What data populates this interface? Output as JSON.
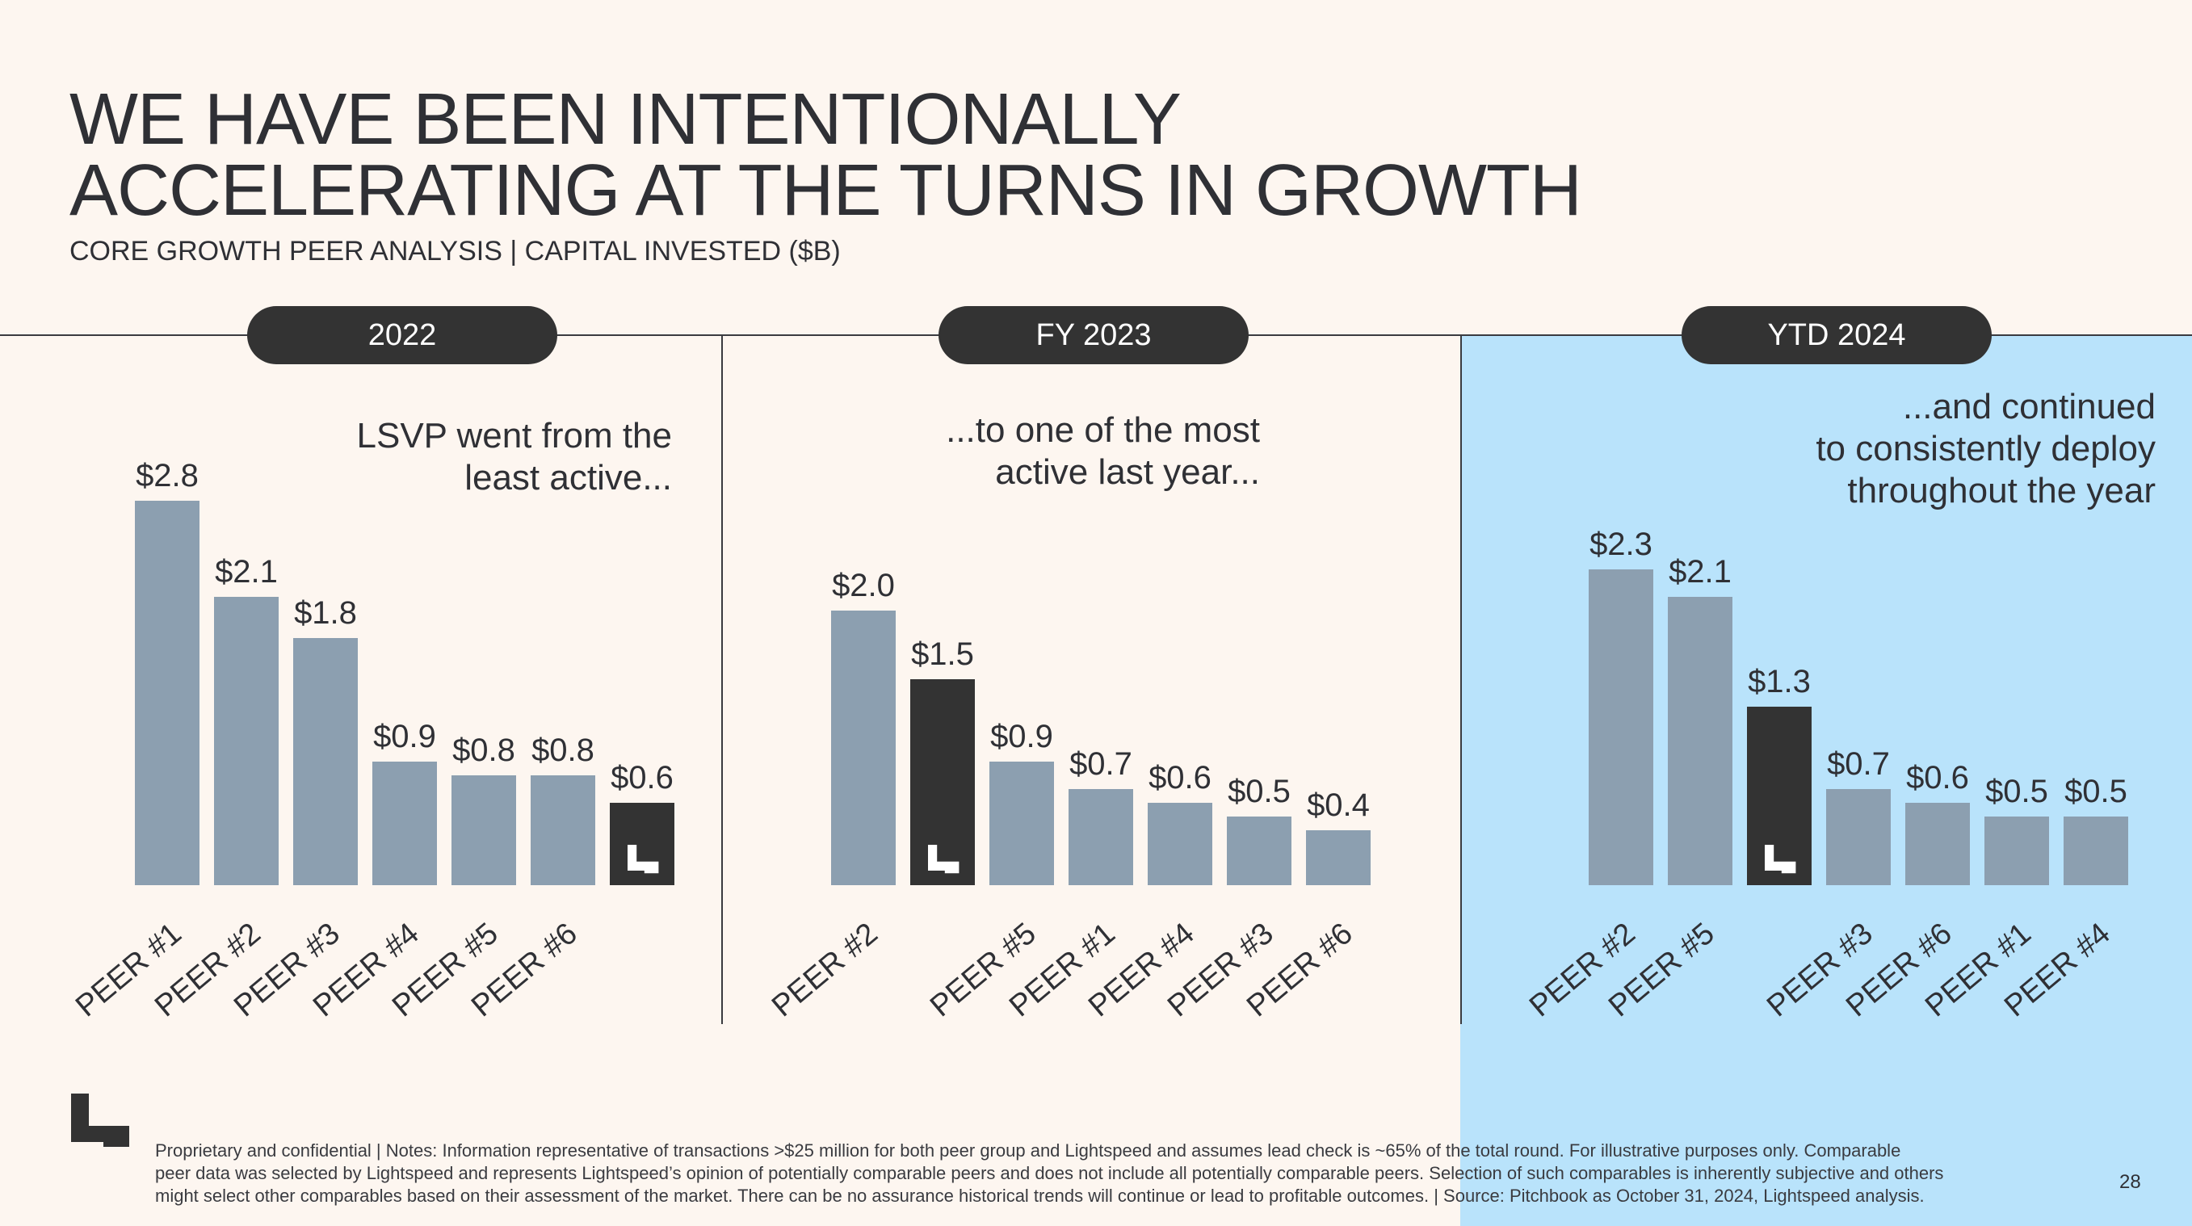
{
  "header": {
    "title_line1": "WE HAVE BEEN INTENTIONALLY",
    "title_line2": "ACCELERATING AT THE TURNS IN GROWTH",
    "subtitle": "CORE GROWTH PEER ANALYSIS | CAPITAL INVESTED ($B)"
  },
  "panels": [
    {
      "label": "2022",
      "annotation": [
        "LSVP went from the",
        "least active..."
      ]
    },
    {
      "label": "FY 2023",
      "annotation": [
        "...to one of the most",
        "active last year..."
      ]
    },
    {
      "label": "YTD 2024",
      "annotation": [
        "...and continued",
        "to consistently deploy",
        "throughout the year"
      ]
    }
  ],
  "colors": {
    "background": "#fdf6f0",
    "highlight_panel": "#b9e3fb",
    "peer_bar": "#8c9fb0",
    "lightspeed_bar": "#333333",
    "text": "#2f3035"
  },
  "chart_data": [
    {
      "type": "bar",
      "title": "2022",
      "categories": [
        "PEER #1",
        "PEER #2",
        "PEER #3",
        "PEER #4",
        "PEER #5",
        "PEER #6",
        ""
      ],
      "values": [
        2.8,
        2.1,
        1.8,
        0.9,
        0.8,
        0.8,
        0.6
      ],
      "data_labels": [
        "$2.8",
        "$2.1",
        "$1.8",
        "$0.9",
        "$0.8",
        "$0.8",
        "$0.6"
      ],
      "highlight_index": 6,
      "highlight_icon": "lightspeed-logo-icon",
      "ylabel": "Capital Invested ($B)"
    },
    {
      "type": "bar",
      "title": "FY 2023",
      "categories": [
        "PEER #2",
        "",
        "PEER #5",
        "PEER #1",
        "PEER #4",
        "PEER #3",
        "PEER #6"
      ],
      "values": [
        2.0,
        1.5,
        0.9,
        0.7,
        0.6,
        0.5,
        0.4
      ],
      "data_labels": [
        "$2.0",
        "$1.5",
        "$0.9",
        "$0.7",
        "$0.6",
        "$0.5",
        "$0.4"
      ],
      "highlight_index": 1,
      "highlight_icon": "lightspeed-logo-icon",
      "ylabel": "Capital Invested ($B)"
    },
    {
      "type": "bar",
      "title": "YTD 2024",
      "categories": [
        "PEER #2",
        "PEER #5",
        "",
        "PEER #3",
        "PEER #6",
        "PEER #1",
        "PEER #4"
      ],
      "values": [
        2.3,
        2.1,
        1.3,
        0.7,
        0.6,
        0.5,
        0.5
      ],
      "data_labels": [
        "$2.3",
        "$2.1",
        "$1.3",
        "$0.7",
        "$0.6",
        "$0.5",
        "$0.5"
      ],
      "highlight_index": 2,
      "highlight_icon": "lightspeed-logo-icon",
      "ylabel": "Capital Invested ($B)"
    }
  ],
  "footer": {
    "notes": [
      "Proprietary and confidential | Notes: Information representative of transactions >$25 million for both peer group and Lightspeed and assumes lead check is ~65% of the total round. For illustrative purposes only. Comparable",
      "peer data was selected by Lightspeed and represents Lightspeed’s opinion of potentially comparable peers and does not include all potentially comparable peers. Selection of such comparables is inherently subjective and others",
      "might select other comparables based on their assessment of the market. There can be no assurance historical trends will continue or lead to profitable outcomes. | Source: Pitchbook as October 31, 2024, Lightspeed analysis."
    ],
    "page_number": "28",
    "logo_icon": "lightspeed-logo-icon"
  }
}
